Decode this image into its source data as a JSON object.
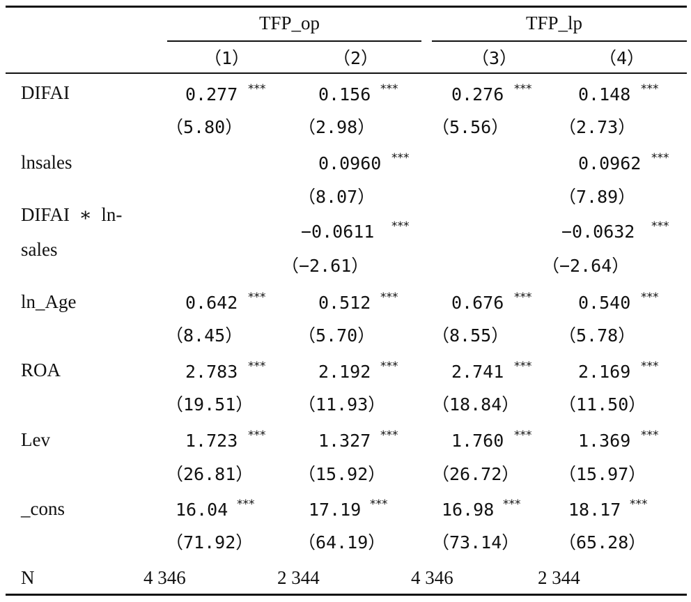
{
  "header": {
    "group1": "TFP_op",
    "group2": "TFP_lp",
    "col1": "（1）",
    "col2": "（2）",
    "col3": "（3）",
    "col4": "（4）"
  },
  "rows": {
    "difai": {
      "label": "DIFAI",
      "c1": "0.277",
      "c1s": "***",
      "c2": "0.156",
      "c2s": "***",
      "c3": "0.276",
      "c3s": "***",
      "c4": "0.148",
      "c4s": "***",
      "t1": "（5.80）",
      "t2": "（2.98）",
      "t3": "（5.56）",
      "t4": "（2.73）"
    },
    "lnsales": {
      "label": "lnsales",
      "c2": "0.0960",
      "c2s": "***",
      "c4": "0.0962",
      "c4s": "***",
      "t2": "（8.07）",
      "t4": "（7.89）"
    },
    "interaction": {
      "label_line1": "DIFAI  ∗  ln-",
      "label_line2": "sales",
      "c2": "−0.0611",
      "c2s": "***",
      "c4": "−0.0632",
      "c4s": "***",
      "t2": "（−2.61）",
      "t4": "（−2.64）"
    },
    "ln_age": {
      "label": "ln_Age",
      "c1": "0.642",
      "c1s": "***",
      "c2": "0.512",
      "c2s": "***",
      "c3": "0.676",
      "c3s": "***",
      "c4": "0.540",
      "c4s": "***",
      "t1": "（8.45）",
      "t2": "（5.70）",
      "t3": "（8.55）",
      "t4": "（5.78）"
    },
    "roa": {
      "label": "ROA",
      "c1": "2.783",
      "c1s": "***",
      "c2": "2.192",
      "c2s": "***",
      "c3": "2.741",
      "c3s": "***",
      "c4": "2.169",
      "c4s": "***",
      "t1": "（19.51）",
      "t2": "（11.93）",
      "t3": "（18.84）",
      "t4": "（11.50）"
    },
    "lev": {
      "label": "Lev",
      "c1": "1.723",
      "c1s": "***",
      "c2": "1.327",
      "c2s": "***",
      "c3": "1.760",
      "c3s": "***",
      "c4": "1.369",
      "c4s": "***",
      "t1": "（26.81）",
      "t2": "（15.92）",
      "t3": "（26.72）",
      "t4": "（15.97）"
    },
    "cons": {
      "label": "_cons",
      "c1": "16.04",
      "c1s": "***",
      "c2": "17.19",
      "c2s": "***",
      "c3": "16.98",
      "c3s": "***",
      "c4": "18.17",
      "c4s": "***",
      "t1": "（71.92）",
      "t2": "（64.19）",
      "t3": "（73.14）",
      "t4": "（65.28）"
    },
    "n": {
      "label": "N",
      "c1": "4 346",
      "c2": "2 344",
      "c3": "4 346",
      "c4": "2 344"
    }
  }
}
